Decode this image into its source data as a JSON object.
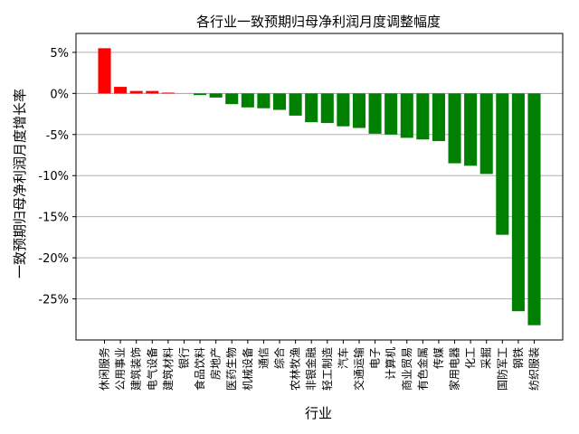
{
  "chart_data": {
    "type": "bar",
    "title": "各行业一致预期归母净利润月度调整幅度",
    "xlabel": "行业",
    "ylabel": "一致预期归母净利润月度增长率",
    "categories": [
      "休闲服务",
      "公用事业",
      "建筑装饰",
      "电气设备",
      "建筑材料",
      "银行",
      "食品饮料",
      "房地产",
      "医药生物",
      "机械设备",
      "通信",
      "综合",
      "农林牧渔",
      "非银金融",
      "轻工制造",
      "汽车",
      "交通运输",
      "电子",
      "计算机",
      "商业贸易",
      "有色金属",
      "传媒",
      "家用电器",
      "化工",
      "采掘",
      "国防军工",
      "钢铁",
      "纺织服装"
    ],
    "values": [
      5.5,
      0.8,
      0.3,
      0.3,
      0.1,
      0.0,
      -0.2,
      -0.5,
      -1.3,
      -1.7,
      -1.8,
      -2.0,
      -2.7,
      -3.5,
      -3.6,
      -4.0,
      -4.2,
      -4.9,
      -5.0,
      -5.4,
      -5.6,
      -5.8,
      -8.5,
      -8.8,
      -9.8,
      -17.2,
      -26.5,
      -28.2
    ],
    "ylim": [
      -30.0,
      7.3
    ],
    "yticks": [
      5,
      0,
      -5,
      -10,
      -15,
      -20,
      -25
    ],
    "ytick_labels": [
      "5%",
      "0%",
      "-5%",
      "-10%",
      "-15%",
      "-20%",
      "-25%"
    ],
    "grid": "horizontal",
    "colors": {
      "positive": "#ff0000",
      "negative": "#008000",
      "grid": "#b0b0b0",
      "zero_line": "#a0a0a0"
    }
  }
}
